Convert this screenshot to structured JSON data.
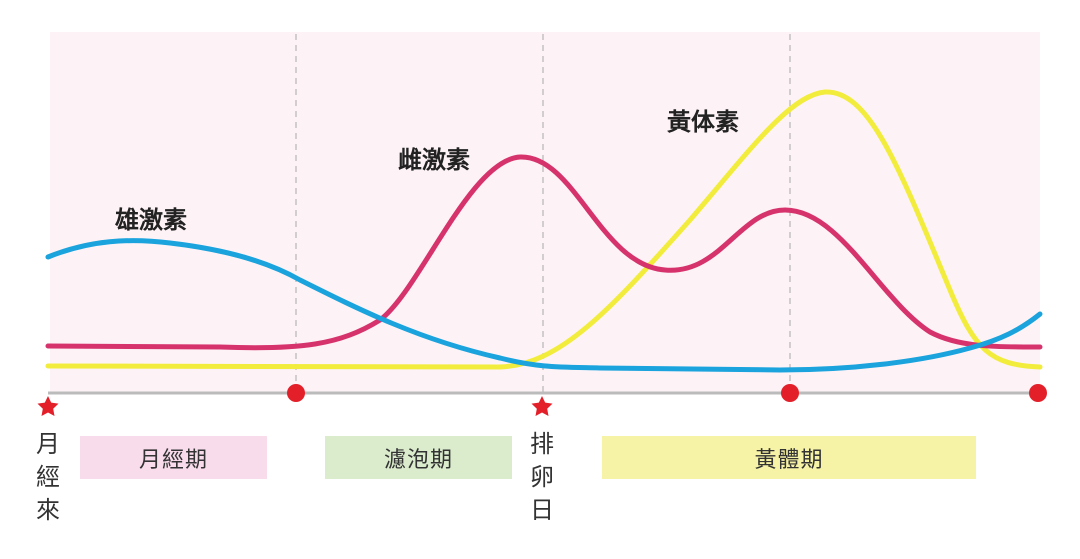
{
  "hormones": {
    "androgen": {
      "label": "雄激素",
      "color": "#1aa3dc"
    },
    "estrogen": {
      "label": "雌激素",
      "color": "#d6336c"
    },
    "progesterone": {
      "label": "黃体素",
      "color": "#f2ec3c"
    }
  },
  "phases": [
    {
      "key": "menstrual",
      "label": "月經期",
      "color": "#f8dcec"
    },
    {
      "key": "follicular",
      "label": "濾泡期",
      "color": "#dbeccd"
    },
    {
      "key": "luteal",
      "label": "黃體期",
      "color": "#f6f3a6"
    }
  ],
  "events": {
    "period_start": {
      "chars": [
        "月",
        "經",
        "來"
      ],
      "marker": "star"
    },
    "ovulation": {
      "chars": [
        "排",
        "卵",
        "日"
      ],
      "marker": "star"
    }
  },
  "colors": {
    "plot_bg": "#fdf3f7",
    "axis": "#bbbbbb",
    "divider": "#b5b5b5",
    "star": "#e3202a",
    "dot": "#e3202a"
  }
}
